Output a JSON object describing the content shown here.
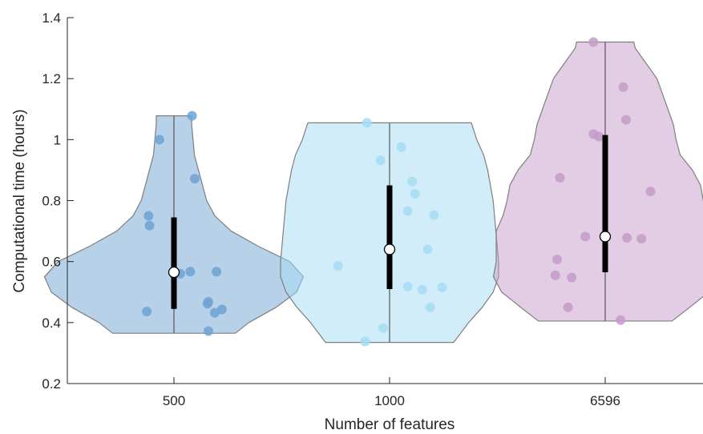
{
  "chart_data": {
    "type": "violin",
    "xlabel": "Number of features",
    "ylabel": "Computational time (hours)",
    "ylim": [
      0.2,
      1.4
    ],
    "yticks": [
      0.2,
      0.4,
      0.6,
      0.8,
      1.0,
      1.2,
      1.4
    ],
    "ytick_labels": [
      "0.2",
      "0.4",
      "0.6",
      "0.8",
      "1",
      "1.2",
      "1.4"
    ],
    "categories": [
      "500",
      "1000",
      "6596"
    ],
    "grid": false,
    "colors": {
      "axis": "#262626",
      "edge": "#7f7f7f",
      "median": "#ffffff",
      "box": "#000000"
    },
    "series": [
      {
        "category": "500",
        "color": "#6fa3d2",
        "median": 0.565,
        "q1": 0.445,
        "q3": 0.745,
        "min": 0.365,
        "max": 1.078,
        "density": [
          [
            0.365,
            0.45
          ],
          [
            0.4,
            0.55
          ],
          [
            0.45,
            0.75
          ],
          [
            0.5,
            0.9
          ],
          [
            0.55,
            0.95
          ],
          [
            0.6,
            0.85
          ],
          [
            0.65,
            0.62
          ],
          [
            0.7,
            0.42
          ],
          [
            0.75,
            0.3
          ],
          [
            0.8,
            0.24
          ],
          [
            0.85,
            0.21
          ],
          [
            0.9,
            0.18
          ],
          [
            0.95,
            0.15
          ],
          [
            1.0,
            0.14
          ],
          [
            1.05,
            0.13
          ],
          [
            1.078,
            0.13
          ]
        ],
        "points": [
          [
            0.2,
            1.078
          ],
          [
            -0.16,
            1.0
          ],
          [
            0.23,
            0.872
          ],
          [
            -0.28,
            0.75
          ],
          [
            -0.27,
            0.718
          ],
          [
            0.18,
            0.567
          ],
          [
            0.07,
            0.56
          ],
          [
            0.47,
            0.567
          ],
          [
            0.0,
            0.558
          ],
          [
            0.38,
            0.468
          ],
          [
            0.37,
            0.462
          ],
          [
            0.53,
            0.443
          ],
          [
            0.45,
            0.432
          ],
          [
            -0.3,
            0.436
          ],
          [
            0.38,
            0.372
          ]
        ]
      },
      {
        "category": "1000",
        "color": "#a6dcf5",
        "median": 0.64,
        "q1": 0.51,
        "q3": 0.85,
        "min": 0.335,
        "max": 1.055,
        "density": [
          [
            0.335,
            0.47
          ],
          [
            0.4,
            0.58
          ],
          [
            0.45,
            0.68
          ],
          [
            0.5,
            0.76
          ],
          [
            0.55,
            0.8
          ],
          [
            0.6,
            0.8
          ],
          [
            0.65,
            0.79
          ],
          [
            0.7,
            0.78
          ],
          [
            0.75,
            0.77
          ],
          [
            0.8,
            0.76
          ],
          [
            0.85,
            0.74
          ],
          [
            0.9,
            0.72
          ],
          [
            0.95,
            0.69
          ],
          [
            1.0,
            0.64
          ],
          [
            1.055,
            0.6
          ]
        ],
        "points": [
          [
            -0.25,
            1.055
          ],
          [
            0.13,
            0.975
          ],
          [
            -0.1,
            0.932
          ],
          [
            0.25,
            0.862
          ],
          [
            0.28,
            0.822
          ],
          [
            0.2,
            0.766
          ],
          [
            0.49,
            0.752
          ],
          [
            -0.57,
            0.586
          ],
          [
            0.42,
            0.64
          ],
          [
            0.58,
            0.515
          ],
          [
            0.2,
            0.518
          ],
          [
            0.36,
            0.508
          ],
          [
            0.45,
            0.45
          ],
          [
            -0.07,
            0.382
          ],
          [
            -0.27,
            0.338
          ]
        ]
      },
      {
        "category": "6596",
        "color": "#c59bc9",
        "median": 0.682,
        "q1": 0.565,
        "q3": 1.015,
        "min": 0.405,
        "max": 1.32,
        "density": [
          [
            0.405,
            0.49
          ],
          [
            0.45,
            0.62
          ],
          [
            0.5,
            0.76
          ],
          [
            0.55,
            0.82
          ],
          [
            0.6,
            0.8
          ],
          [
            0.65,
            0.8
          ],
          [
            0.7,
            0.8
          ],
          [
            0.75,
            0.75
          ],
          [
            0.8,
            0.72
          ],
          [
            0.85,
            0.7
          ],
          [
            0.9,
            0.64
          ],
          [
            0.95,
            0.55
          ],
          [
            1.0,
            0.52
          ],
          [
            1.05,
            0.5
          ],
          [
            1.1,
            0.46
          ],
          [
            1.15,
            0.42
          ],
          [
            1.2,
            0.38
          ],
          [
            1.25,
            0.3
          ],
          [
            1.3,
            0.22
          ],
          [
            1.32,
            0.21
          ]
        ],
        "points": [
          [
            -0.13,
            1.32
          ],
          [
            0.2,
            1.172
          ],
          [
            0.23,
            1.065
          ],
          [
            -0.13,
            1.018
          ],
          [
            -0.07,
            1.01
          ],
          [
            -0.5,
            0.875
          ],
          [
            0.5,
            0.83
          ],
          [
            -0.22,
            0.682
          ],
          [
            0.24,
            0.678
          ],
          [
            0.4,
            0.675
          ],
          [
            -0.37,
            0.548
          ],
          [
            -0.53,
            0.607
          ],
          [
            -0.55,
            0.555
          ],
          [
            -0.41,
            0.45
          ],
          [
            0.17,
            0.408
          ]
        ]
      }
    ]
  }
}
